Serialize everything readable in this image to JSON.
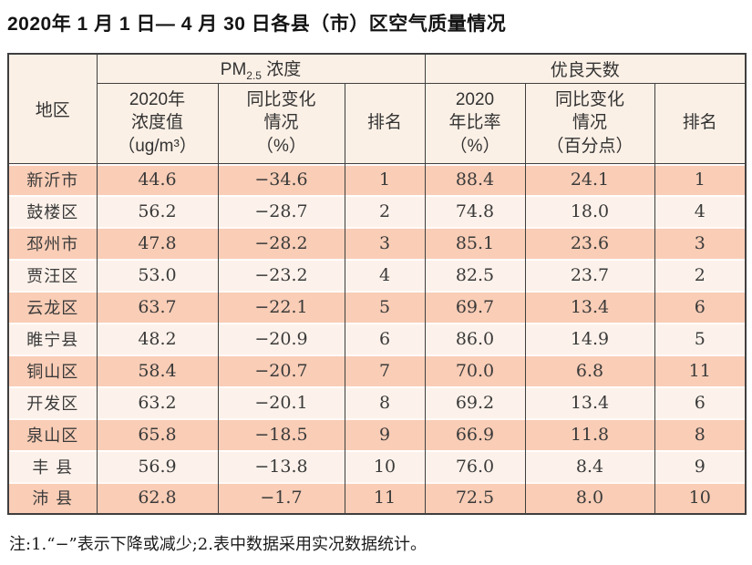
{
  "page": {
    "title": "2020年 1 月 1 日— 4 月 30 日各县（市）区空气质量情况",
    "note": "注:1.“−”表示下降或减少;2.表中数据采用实况数据统计。"
  },
  "colors": {
    "row-odd": "#f9cdb6",
    "row-even": "#fdf2eb",
    "header-bg": "#fbf0e6",
    "border": "#3f3f3f",
    "text": "#3a3a3a"
  },
  "table": {
    "header": {
      "region": "地区",
      "pm_group": {
        "prefix": "PM",
        "subscript": "2.5",
        "suffix": " 浓度"
      },
      "good_group": "优良天数",
      "pm_value": "2020年\n浓度值\n（ug/m³）",
      "pm_change": "同比变化\n情况\n（%）",
      "pm_rank": "排名",
      "good_ratio": "2020\n年比率\n（%）",
      "good_change": "同比变化\n情况\n（百分点）",
      "good_rank": "排名"
    },
    "rows": [
      {
        "region": "新沂市",
        "pm_value": "44.6",
        "pm_change": "−34.6",
        "pm_rank": "1",
        "good_ratio": "88.4",
        "good_change": "24.1",
        "good_rank": "1"
      },
      {
        "region": "鼓楼区",
        "pm_value": "56.2",
        "pm_change": "−28.7",
        "pm_rank": "2",
        "good_ratio": "74.8",
        "good_change": "18.0",
        "good_rank": "4"
      },
      {
        "region": "邳州市",
        "pm_value": "47.8",
        "pm_change": "−28.2",
        "pm_rank": "3",
        "good_ratio": "85.1",
        "good_change": "23.6",
        "good_rank": "3"
      },
      {
        "region": "贾汪区",
        "pm_value": "53.0",
        "pm_change": "−23.2",
        "pm_rank": "4",
        "good_ratio": "82.5",
        "good_change": "23.7",
        "good_rank": "2"
      },
      {
        "region": "云龙区",
        "pm_value": "63.7",
        "pm_change": "−22.1",
        "pm_rank": "5",
        "good_ratio": "69.7",
        "good_change": "13.4",
        "good_rank": "6"
      },
      {
        "region": "睢宁县",
        "pm_value": "48.2",
        "pm_change": "−20.9",
        "pm_rank": "6",
        "good_ratio": "86.0",
        "good_change": "14.9",
        "good_rank": "5"
      },
      {
        "region": "铜山区",
        "pm_value": "58.4",
        "pm_change": "−20.7",
        "pm_rank": "7",
        "good_ratio": "70.0",
        "good_change": "6.8",
        "good_rank": "11"
      },
      {
        "region": "开发区",
        "pm_value": "63.2",
        "pm_change": "−20.1",
        "pm_rank": "8",
        "good_ratio": "69.2",
        "good_change": "13.4",
        "good_rank": "6"
      },
      {
        "region": "泉山区",
        "pm_value": "65.8",
        "pm_change": "−18.5",
        "pm_rank": "9",
        "good_ratio": "66.9",
        "good_change": "11.8",
        "good_rank": "8"
      },
      {
        "region": "丰 县",
        "pm_value": "56.9",
        "pm_change": "−13.8",
        "pm_rank": "10",
        "good_ratio": "76.0",
        "good_change": "8.4",
        "good_rank": "9"
      },
      {
        "region": "沛 县",
        "pm_value": "62.8",
        "pm_change": "−1.7",
        "pm_rank": "11",
        "good_ratio": "72.5",
        "good_change": "8.0",
        "good_rank": "10"
      }
    ]
  }
}
